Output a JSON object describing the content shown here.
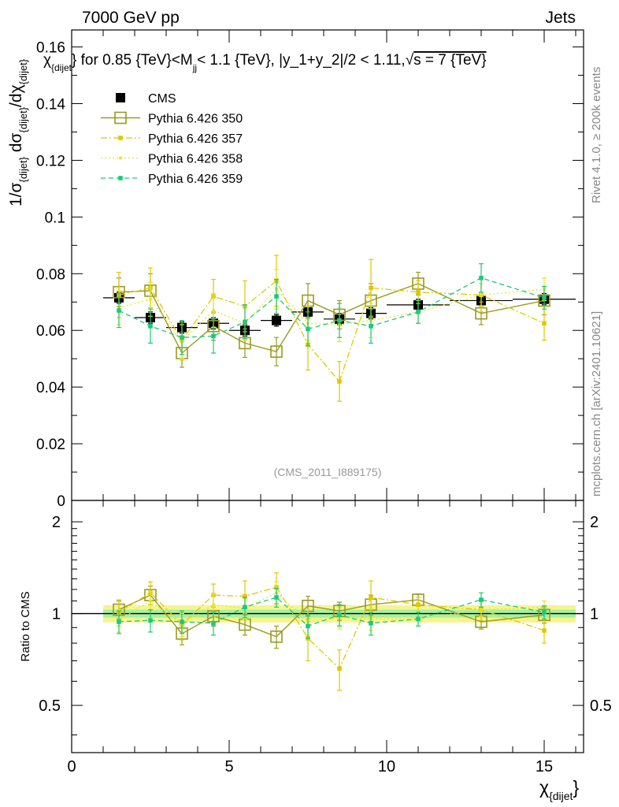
{
  "header": {
    "left": "7000 GeV pp",
    "right": "Jets",
    "title": "χ_{dijet}} for 0.85 {TeV}<M_jj< 1.1 {TeV}, |y_1+y_2|/2 < 1.11,√s = 7 {TeV}",
    "title_main": "χ",
    "title_sub1": "{dijet",
    "title_mid": "} for 0.85 {TeV}<M",
    "title_sub2": "jj",
    "title_tail": "< 1.1 {TeV}, |y_1+y_2|/2 < 1.11,",
    "title_sqrt": "√",
    "title_end": "s = 7 {TeV}"
  },
  "side_labels": {
    "rivet": "Rivet 4.1.0, ≥ 200k events",
    "mcplots": "mcplots.cern.ch [arXiv:2401.10621]"
  },
  "watermark": "(CMS_2011_I889175)",
  "colors": {
    "cms": "#000000",
    "p350": "#9a9a22",
    "p357": "#e0c800",
    "p358": "#e6e620",
    "p359": "#1ec87a",
    "band_outer": "#f5f590",
    "band_inner": "#a8f0a0"
  },
  "chart_data": [
    {
      "type": "scatter",
      "panel": "main",
      "ylabel": "1/σ_{dijet} dσ_{dijet}/dχ_{dijet}",
      "ylabel_parts": {
        "a": "1/σ",
        "sub1": "{dijet}",
        "b": " dσ",
        "sub2": "{dijet}",
        "c": "/dχ",
        "sub3": "{dijet}"
      },
      "xlim": [
        0,
        16.25
      ],
      "ylim": [
        0,
        0.166
      ],
      "yticks": [
        0,
        0.02,
        0.04,
        0.06,
        0.08,
        0.1,
        0.12,
        0.14,
        0.16
      ],
      "ytick_labels": [
        "0",
        "0.02",
        "0.04",
        "0.06",
        "0.08",
        "0.1",
        "0.12",
        "0.14",
        "0.16"
      ],
      "x": [
        1.5,
        2.5,
        3.5,
        4.5,
        5.5,
        6.5,
        7.5,
        8.5,
        9.5,
        11.0,
        13.0,
        15.0
      ],
      "xerr": [
        0.5,
        0.5,
        0.5,
        0.5,
        0.5,
        0.5,
        0.5,
        0.5,
        0.5,
        1.0,
        1.0,
        1.0
      ],
      "series": [
        {
          "name": "CMS",
          "key": "cms",
          "values": [
            0.0715,
            0.0645,
            0.061,
            0.0625,
            0.06,
            0.0635,
            0.0665,
            0.064,
            0.066,
            0.069,
            0.0705,
            0.071
          ],
          "err": [
            0.002,
            0.002,
            0.002,
            0.002,
            0.002,
            0.002,
            0.002,
            0.002,
            0.002,
            0.002,
            0.002,
            0.002
          ]
        },
        {
          "name": "Pythia 6.426 350",
          "key": "p350",
          "values": [
            0.0735,
            0.074,
            0.052,
            0.0615,
            0.0555,
            0.0525,
            0.0705,
            0.0655,
            0.0705,
            0.0765,
            0.066,
            0.0705
          ],
          "err": [
            0.005,
            0.006,
            0.005,
            0.005,
            0.005,
            0.005,
            0.006,
            0.005,
            0.006,
            0.004,
            0.004,
            0.005
          ]
        },
        {
          "name": "Pythia 6.426 357",
          "key": "p357",
          "values": [
            0.0725,
            0.075,
            0.0565,
            0.072,
            0.0685,
            0.0775,
            0.055,
            0.042,
            0.075,
            0.0735,
            0.0725,
            0.0625
          ],
          "err": [
            0.008,
            0.007,
            0.007,
            0.006,
            0.009,
            0.009,
            0.009,
            0.007,
            0.01,
            0.004,
            0.006,
            0.006
          ]
        },
        {
          "name": "Pythia 6.426 358",
          "key": "p358",
          "values": [
            0.068,
            0.071,
            0.056,
            0.067,
            0.0625,
            0.0745,
            0.0625,
            0.062,
            0.0635,
            0.0665,
            0.0725,
            0.0745
          ],
          "err": [
            0.006,
            0.006,
            0.006,
            0.006,
            0.006,
            0.007,
            0.006,
            0.006,
            0.006,
            0.004,
            0.004,
            0.004
          ]
        },
        {
          "name": "Pythia 6.426 359",
          "key": "p359",
          "values": [
            0.067,
            0.0615,
            0.0575,
            0.058,
            0.063,
            0.072,
            0.0605,
            0.0635,
            0.0615,
            0.0665,
            0.0785,
            0.0715
          ],
          "err": [
            0.006,
            0.006,
            0.006,
            0.006,
            0.006,
            0.006,
            0.006,
            0.006,
            0.006,
            0.004,
            0.005,
            0.004
          ]
        }
      ]
    },
    {
      "type": "scatter",
      "panel": "ratio",
      "ylabel": "Ratio to CMS",
      "xlabel": "χ_{dijet}}",
      "xlabel_main": "χ",
      "xlabel_sub": "{dijet",
      "xlabel_tail": "}",
      "xlim": [
        0,
        16.25
      ],
      "ylim": [
        0.35,
        2.35
      ],
      "yticks": [
        0.5,
        1,
        2
      ],
      "ytick_labels": [
        "0.5",
        "1",
        "2"
      ],
      "xticks": [
        0,
        5,
        10,
        15
      ],
      "xtick_labels": [
        "0",
        "5",
        "10",
        "15"
      ],
      "x": [
        1.5,
        2.5,
        3.5,
        4.5,
        5.5,
        6.5,
        7.5,
        8.5,
        9.5,
        11.0,
        13.0,
        15.0
      ],
      "xerr": [
        0.5,
        0.5,
        0.5,
        0.5,
        0.5,
        0.5,
        0.5,
        0.5,
        0.5,
        1.0,
        1.0,
        1.0
      ],
      "band": {
        "x_range": [
          1,
          16
        ],
        "outer": 0.065,
        "inner": 0.03
      },
      "series": [
        {
          "name": "Pythia 6.426 350",
          "key": "p350",
          "values": [
            1.03,
            1.15,
            0.86,
            0.98,
            0.92,
            0.84,
            1.06,
            1.02,
            1.07,
            1.11,
            0.94,
            0.99
          ],
          "err": [
            0.07,
            0.08,
            0.07,
            0.07,
            0.07,
            0.07,
            0.08,
            0.07,
            0.08,
            0.05,
            0.05,
            0.06
          ]
        },
        {
          "name": "Pythia 6.426 357",
          "key": "p357",
          "values": [
            1.01,
            1.17,
            0.92,
            1.15,
            1.14,
            1.22,
            0.83,
            0.66,
            1.13,
            1.07,
            1.03,
            0.88
          ],
          "err": [
            0.1,
            0.1,
            0.1,
            0.1,
            0.14,
            0.14,
            0.13,
            0.1,
            0.15,
            0.06,
            0.08,
            0.08
          ]
        },
        {
          "name": "Pythia 6.426 358",
          "key": "p358",
          "values": [
            0.95,
            1.1,
            0.92,
            1.07,
            1.04,
            1.17,
            0.94,
            0.97,
            0.96,
            0.96,
            1.03,
            1.05
          ],
          "err": [
            0.08,
            0.08,
            0.08,
            0.09,
            0.08,
            0.1,
            0.09,
            0.08,
            0.08,
            0.05,
            0.05,
            0.05
          ]
        },
        {
          "name": "Pythia 6.426 359",
          "key": "p359",
          "values": [
            0.94,
            0.95,
            0.94,
            0.93,
            1.05,
            1.13,
            0.91,
            0.99,
            0.93,
            0.96,
            1.11,
            1.01
          ],
          "err": [
            0.08,
            0.08,
            0.08,
            0.08,
            0.08,
            0.08,
            0.08,
            0.08,
            0.08,
            0.05,
            0.06,
            0.05
          ]
        }
      ]
    }
  ]
}
